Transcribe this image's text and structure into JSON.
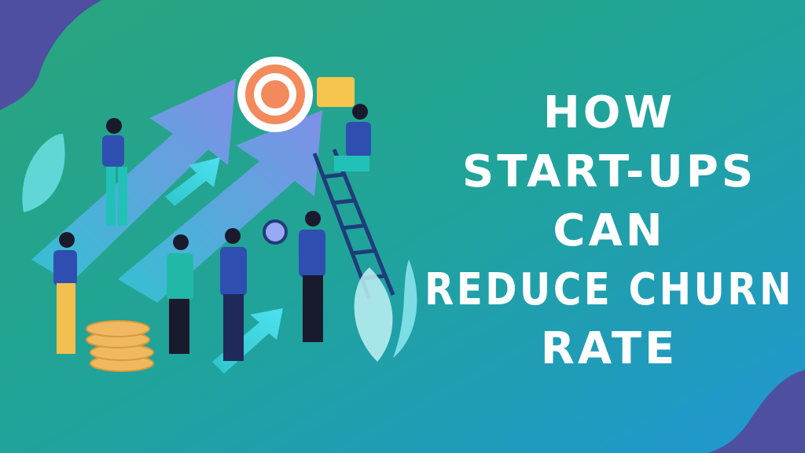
{
  "title_lines": [
    "HOW",
    "START-UPS",
    "CAN",
    "REDUCE CHURN",
    "RATE"
  ]
}
